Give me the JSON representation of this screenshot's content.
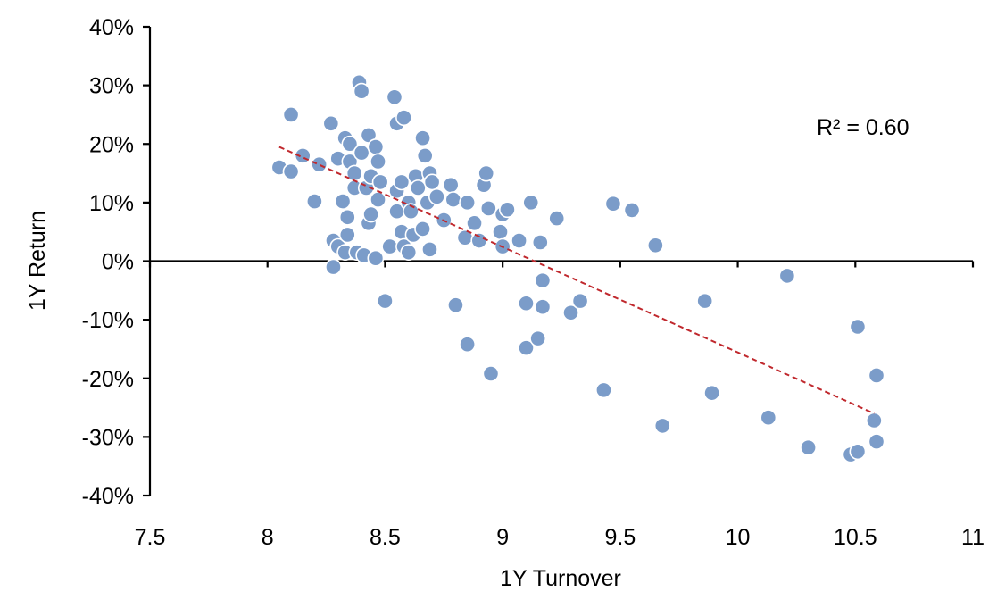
{
  "chart_data": {
    "type": "scatter",
    "title": "",
    "xlabel": "1Y Turnover",
    "ylabel": "1Y Return",
    "xlim": [
      7.5,
      11
    ],
    "ylim": [
      -40,
      40
    ],
    "x_ticks": [
      7.5,
      8,
      8.5,
      9,
      9.5,
      10,
      10.5,
      11
    ],
    "x_tick_labels": [
      "7.5",
      "8",
      "8.5",
      "9",
      "9.5",
      "10",
      "10.5",
      "11"
    ],
    "y_ticks": [
      40,
      30,
      20,
      10,
      0,
      -10,
      -20,
      -30,
      -40
    ],
    "y_tick_labels": [
      "40%",
      "30%",
      "20%",
      "10%",
      "0%",
      "-10%",
      "-20%",
      "-30%",
      "-40%"
    ],
    "grid": false,
    "legend": "none",
    "marker_color": "#7b9cc9",
    "trendline": {
      "type": "linear",
      "color": "#c0282d",
      "style": "dashed",
      "x": [
        8.05,
        10.58
      ],
      "y": [
        19.5,
        -26.0
      ],
      "label": "R² = 0.60"
    },
    "points": [
      {
        "x": 8.05,
        "y": 16.0
      },
      {
        "x": 8.1,
        "y": 15.3
      },
      {
        "x": 8.1,
        "y": 25.0
      },
      {
        "x": 8.15,
        "y": 18.0
      },
      {
        "x": 8.2,
        "y": 10.2
      },
      {
        "x": 8.22,
        "y": 16.5
      },
      {
        "x": 8.27,
        "y": 23.5
      },
      {
        "x": 8.28,
        "y": -1.0
      },
      {
        "x": 8.28,
        "y": 3.5
      },
      {
        "x": 8.3,
        "y": 2.5
      },
      {
        "x": 8.3,
        "y": 17.5
      },
      {
        "x": 8.32,
        "y": 10.2
      },
      {
        "x": 8.33,
        "y": 21.0
      },
      {
        "x": 8.33,
        "y": 1.5
      },
      {
        "x": 8.34,
        "y": 4.5
      },
      {
        "x": 8.34,
        "y": 7.5
      },
      {
        "x": 8.35,
        "y": 20.0
      },
      {
        "x": 8.35,
        "y": 17.0
      },
      {
        "x": 8.37,
        "y": 15.0
      },
      {
        "x": 8.37,
        "y": 12.5
      },
      {
        "x": 8.38,
        "y": 1.5
      },
      {
        "x": 8.39,
        "y": 30.5
      },
      {
        "x": 8.4,
        "y": 29.0
      },
      {
        "x": 8.4,
        "y": 18.5
      },
      {
        "x": 8.41,
        "y": 1.0
      },
      {
        "x": 8.42,
        "y": 12.5
      },
      {
        "x": 8.43,
        "y": 21.5
      },
      {
        "x": 8.43,
        "y": 6.5
      },
      {
        "x": 8.44,
        "y": 14.5
      },
      {
        "x": 8.44,
        "y": 8.0
      },
      {
        "x": 8.46,
        "y": 19.5
      },
      {
        "x": 8.46,
        "y": 0.5
      },
      {
        "x": 8.47,
        "y": 17.0
      },
      {
        "x": 8.47,
        "y": 10.5
      },
      {
        "x": 8.48,
        "y": 13.5
      },
      {
        "x": 8.5,
        "y": -6.8
      },
      {
        "x": 8.52,
        "y": 2.5
      },
      {
        "x": 8.54,
        "y": 28.0
      },
      {
        "x": 8.55,
        "y": 23.5
      },
      {
        "x": 8.55,
        "y": 12.0
      },
      {
        "x": 8.55,
        "y": 8.5
      },
      {
        "x": 8.57,
        "y": 5.0
      },
      {
        "x": 8.57,
        "y": 13.5
      },
      {
        "x": 8.58,
        "y": 24.5
      },
      {
        "x": 8.58,
        "y": 2.5
      },
      {
        "x": 8.6,
        "y": 10.0
      },
      {
        "x": 8.6,
        "y": 1.5
      },
      {
        "x": 8.61,
        "y": 8.5
      },
      {
        "x": 8.62,
        "y": 4.5
      },
      {
        "x": 8.63,
        "y": 14.5
      },
      {
        "x": 8.64,
        "y": 12.5
      },
      {
        "x": 8.66,
        "y": 21.0
      },
      {
        "x": 8.66,
        "y": 5.5
      },
      {
        "x": 8.67,
        "y": 18.0
      },
      {
        "x": 8.68,
        "y": 10.0
      },
      {
        "x": 8.69,
        "y": 15.0
      },
      {
        "x": 8.69,
        "y": 2.0
      },
      {
        "x": 8.7,
        "y": 13.5
      },
      {
        "x": 8.72,
        "y": 11.0
      },
      {
        "x": 8.75,
        "y": 7.0
      },
      {
        "x": 8.78,
        "y": 13.0
      },
      {
        "x": 8.79,
        "y": 10.5
      },
      {
        "x": 8.8,
        "y": -7.5
      },
      {
        "x": 8.84,
        "y": 4.0
      },
      {
        "x": 8.85,
        "y": -14.2
      },
      {
        "x": 8.85,
        "y": 10.0
      },
      {
        "x": 8.88,
        "y": 6.5
      },
      {
        "x": 8.9,
        "y": 3.5
      },
      {
        "x": 8.92,
        "y": 13.0
      },
      {
        "x": 8.93,
        "y": 15.0
      },
      {
        "x": 8.94,
        "y": 9.0
      },
      {
        "x": 8.95,
        "y": -19.2
      },
      {
        "x": 8.99,
        "y": 5.0
      },
      {
        "x": 9.0,
        "y": 2.5
      },
      {
        "x": 9.0,
        "y": 8.0
      },
      {
        "x": 9.02,
        "y": 8.8
      },
      {
        "x": 9.07,
        "y": 3.5
      },
      {
        "x": 9.1,
        "y": -7.2
      },
      {
        "x": 9.1,
        "y": -14.8
      },
      {
        "x": 9.12,
        "y": 10.0
      },
      {
        "x": 9.15,
        "y": -13.2
      },
      {
        "x": 9.16,
        "y": 3.2
      },
      {
        "x": 9.17,
        "y": -3.3
      },
      {
        "x": 9.17,
        "y": -7.8
      },
      {
        "x": 9.23,
        "y": 7.3
      },
      {
        "x": 9.29,
        "y": -8.8
      },
      {
        "x": 9.33,
        "y": -6.8
      },
      {
        "x": 9.43,
        "y": -22.0
      },
      {
        "x": 9.47,
        "y": 9.8
      },
      {
        "x": 9.55,
        "y": 8.7
      },
      {
        "x": 9.65,
        "y": 2.7
      },
      {
        "x": 9.68,
        "y": -28.1
      },
      {
        "x": 9.86,
        "y": -6.8
      },
      {
        "x": 9.89,
        "y": -22.5
      },
      {
        "x": 10.13,
        "y": -26.7
      },
      {
        "x": 10.21,
        "y": -2.5
      },
      {
        "x": 10.3,
        "y": -31.8
      },
      {
        "x": 10.48,
        "y": -33.0
      },
      {
        "x": 10.51,
        "y": -32.5
      },
      {
        "x": 10.51,
        "y": -11.2
      },
      {
        "x": 10.58,
        "y": -27.2
      },
      {
        "x": 10.59,
        "y": -30.8
      },
      {
        "x": 10.59,
        "y": -19.5
      }
    ]
  }
}
